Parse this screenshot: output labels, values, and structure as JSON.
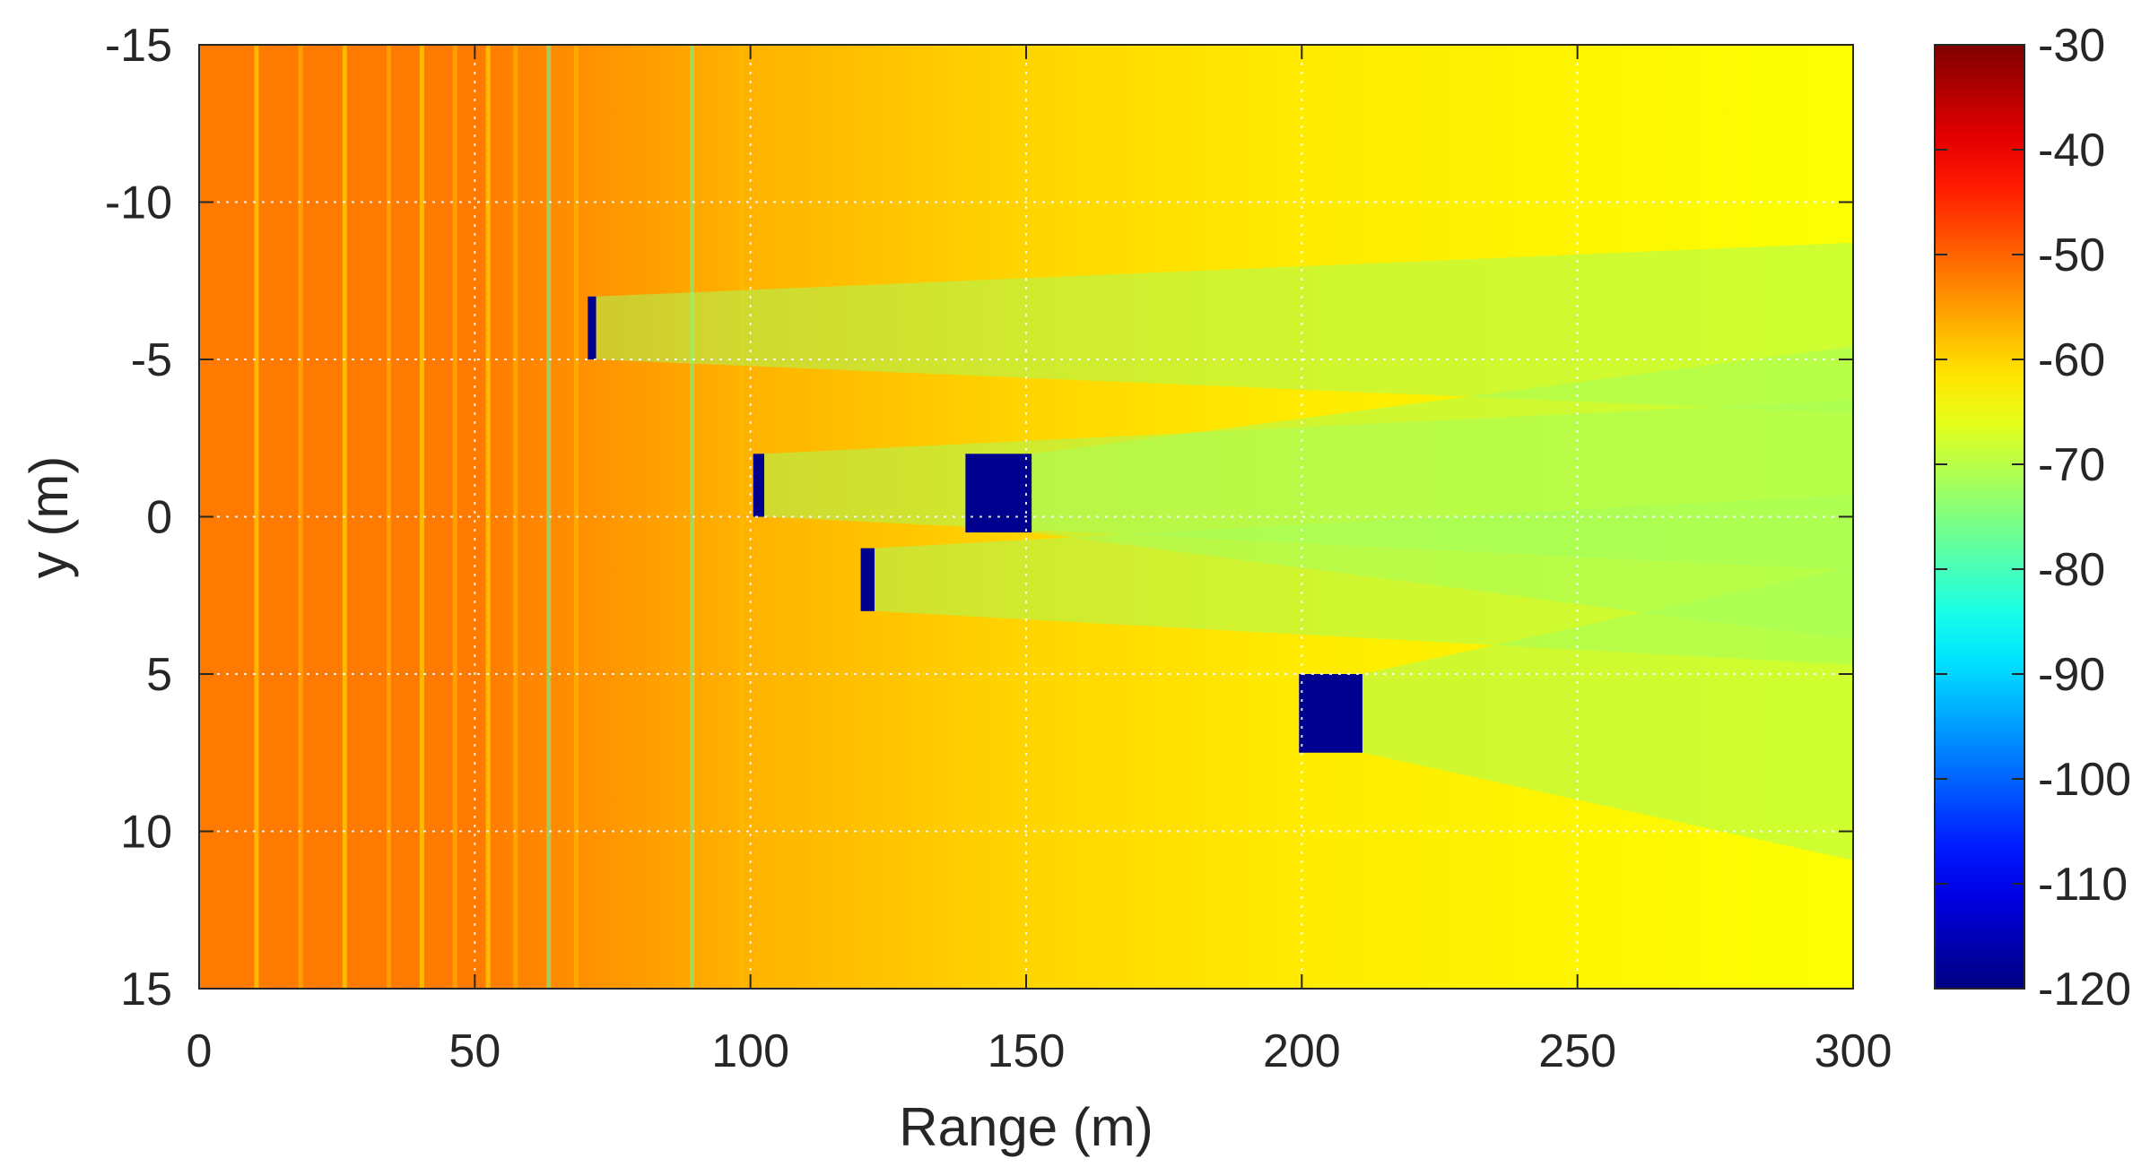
{
  "chart_data": {
    "type": "heatmap",
    "title": "",
    "xlabel": "Range (m)",
    "ylabel": "y (m)",
    "xlim": [
      0,
      300
    ],
    "ylim": [
      -15,
      15
    ],
    "y_reversed": true,
    "grid": true,
    "grid_style": "dotted",
    "xticks": [
      0,
      50,
      100,
      150,
      200,
      250,
      300
    ],
    "xtick_labels": [
      "0",
      "50",
      "100",
      "150",
      "200",
      "250",
      "300"
    ],
    "yticks": [
      -15,
      -10,
      -5,
      0,
      5,
      10,
      15
    ],
    "ytick_labels": [
      "-15",
      "-10",
      "-5",
      "0",
      "5",
      "10",
      "15"
    ],
    "colormap": "jet",
    "colorbar": {
      "position": "right",
      "range": [
        -120,
        -30
      ],
      "ticks": [
        -30,
        -40,
        -50,
        -60,
        -70,
        -80,
        -90,
        -100,
        -110,
        -120
      ],
      "tick_labels": [
        "-30",
        "-40",
        "-50",
        "-60",
        "-70",
        "-80",
        "-90",
        "-100",
        "-110",
        "-120"
      ]
    },
    "value_profile": {
      "description_ranges_m": [
        0,
        50,
        100,
        150,
        200,
        300
      ],
      "approx_level_db": [
        -52,
        -52,
        -57,
        -60,
        -62,
        -64
      ]
    },
    "obstacles": [
      {
        "x": [
          70.5,
          72.0
        ],
        "y": [
          -7.0,
          -5.0
        ],
        "level": -120
      },
      {
        "x": [
          100.5,
          102.5
        ],
        "y": [
          -2.0,
          0.0
        ],
        "level": -120
      },
      {
        "x": [
          139.0,
          151.0
        ],
        "y": [
          -2.0,
          0.5
        ],
        "level": -120
      },
      {
        "x": [
          120.0,
          122.5
        ],
        "y": [
          1.0,
          3.0
        ],
        "level": -120
      },
      {
        "x": [
          199.5,
          211.0
        ],
        "y": [
          5.0,
          7.5
        ],
        "level": -120
      }
    ],
    "colors": {
      "axis": "#262626",
      "grid": "#ffffff",
      "obstacle": "#00008f"
    }
  }
}
